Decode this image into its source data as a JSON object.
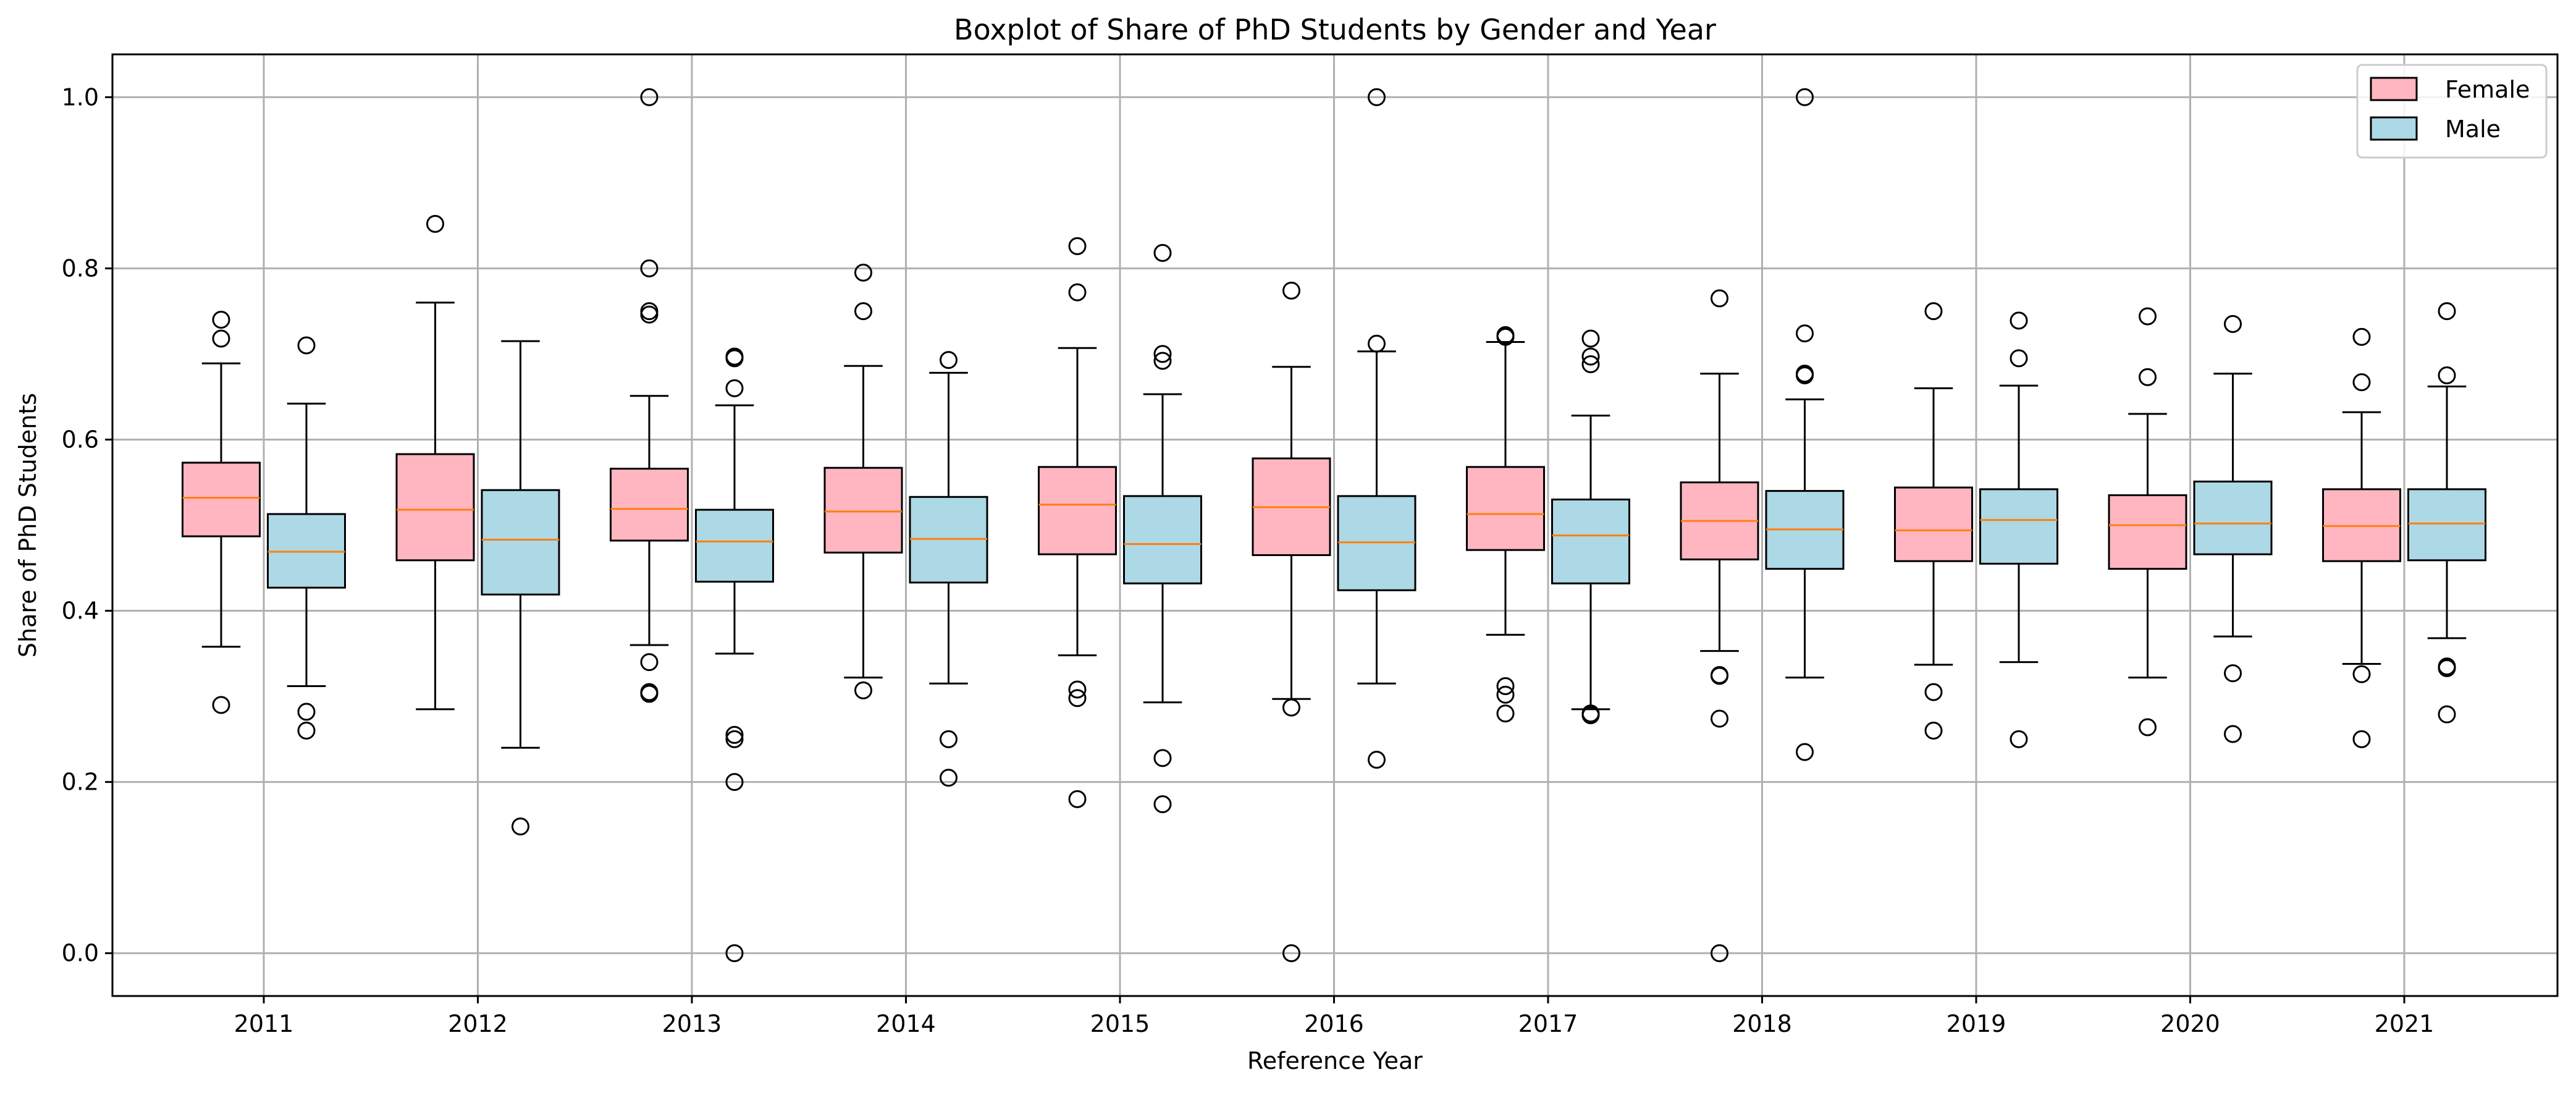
{
  "chart_data": {
    "type": "boxplot",
    "title": "Boxplot of Share of PhD Students by Gender and Year",
    "xlabel": "Reference Year",
    "ylabel": "Share of PhD Students",
    "ylim": [
      -0.05,
      1.05
    ],
    "yticks": [
      0.0,
      0.2,
      0.4,
      0.6,
      0.8,
      1.0
    ],
    "ytick_labels": [
      "0.0",
      "0.2",
      "0.4",
      "0.6",
      "0.8",
      "1.0"
    ],
    "grid": true,
    "legend_position": "top-right",
    "categories": [
      "2011",
      "2012",
      "2013",
      "2014",
      "2015",
      "2016",
      "2017",
      "2018",
      "2019",
      "2020",
      "2021"
    ],
    "colors": {
      "Female": "#ffb6c1",
      "Male": "#add8e6",
      "median": "#ff7f0e",
      "grid": "#b0b0b0"
    },
    "series": [
      {
        "name": "Female",
        "boxes": [
          {
            "whislo": 0.358,
            "q1": 0.487,
            "med": 0.532,
            "q3": 0.573,
            "whishi": 0.689,
            "fliers": [
              0.29,
              0.718,
              0.74
            ]
          },
          {
            "whislo": 0.285,
            "q1": 0.459,
            "med": 0.518,
            "q3": 0.583,
            "whishi": 0.76,
            "fliers": [
              0.852
            ]
          },
          {
            "whislo": 0.36,
            "q1": 0.482,
            "med": 0.519,
            "q3": 0.566,
            "whishi": 0.651,
            "fliers": [
              0.303,
              0.305,
              0.34,
              0.746,
              0.75,
              0.8,
              1.0
            ]
          },
          {
            "whislo": 0.322,
            "q1": 0.468,
            "med": 0.516,
            "q3": 0.567,
            "whishi": 0.686,
            "fliers": [
              0.307,
              0.75,
              0.795
            ]
          },
          {
            "whislo": 0.348,
            "q1": 0.466,
            "med": 0.524,
            "q3": 0.568,
            "whishi": 0.707,
            "fliers": [
              0.18,
              0.298,
              0.308,
              0.772,
              0.826
            ]
          },
          {
            "whislo": 0.297,
            "q1": 0.465,
            "med": 0.521,
            "q3": 0.578,
            "whishi": 0.685,
            "fliers": [
              0.0,
              0.287,
              0.774
            ]
          },
          {
            "whislo": 0.372,
            "q1": 0.471,
            "med": 0.513,
            "q3": 0.568,
            "whishi": 0.714,
            "fliers": [
              0.28,
              0.302,
              0.312,
              0.72,
              0.722
            ]
          },
          {
            "whislo": 0.353,
            "q1": 0.46,
            "med": 0.505,
            "q3": 0.55,
            "whishi": 0.677,
            "fliers": [
              0.0,
              0.274,
              0.324,
              0.325,
              0.765
            ]
          },
          {
            "whislo": 0.337,
            "q1": 0.458,
            "med": 0.494,
            "q3": 0.544,
            "whishi": 0.66,
            "fliers": [
              0.26,
              0.305,
              0.75
            ]
          },
          {
            "whislo": 0.322,
            "q1": 0.449,
            "med": 0.5,
            "q3": 0.535,
            "whishi": 0.63,
            "fliers": [
              0.264,
              0.673,
              0.744
            ]
          },
          {
            "whislo": 0.338,
            "q1": 0.458,
            "med": 0.499,
            "q3": 0.542,
            "whishi": 0.632,
            "fliers": [
              0.25,
              0.326,
              0.667,
              0.72
            ]
          }
        ]
      },
      {
        "name": "Male",
        "boxes": [
          {
            "whislo": 0.312,
            "q1": 0.427,
            "med": 0.469,
            "q3": 0.513,
            "whishi": 0.642,
            "fliers": [
              0.26,
              0.282,
              0.71
            ]
          },
          {
            "whislo": 0.24,
            "q1": 0.419,
            "med": 0.483,
            "q3": 0.541,
            "whishi": 0.715,
            "fliers": [
              0.148
            ]
          },
          {
            "whislo": 0.35,
            "q1": 0.434,
            "med": 0.481,
            "q3": 0.518,
            "whishi": 0.64,
            "fliers": [
              0.0,
              0.2,
              0.25,
              0.255,
              0.66,
              0.695,
              0.697
            ]
          },
          {
            "whislo": 0.315,
            "q1": 0.433,
            "med": 0.484,
            "q3": 0.533,
            "whishi": 0.678,
            "fliers": [
              0.205,
              0.25,
              0.693
            ]
          },
          {
            "whislo": 0.293,
            "q1": 0.432,
            "med": 0.478,
            "q3": 0.534,
            "whishi": 0.653,
            "fliers": [
              0.174,
              0.228,
              0.692,
              0.7,
              0.818
            ]
          },
          {
            "whislo": 0.315,
            "q1": 0.424,
            "med": 0.48,
            "q3": 0.534,
            "whishi": 0.703,
            "fliers": [
              0.226,
              0.712,
              1.0
            ]
          },
          {
            "whislo": 0.285,
            "q1": 0.432,
            "med": 0.488,
            "q3": 0.53,
            "whishi": 0.628,
            "fliers": [
              0.278,
              0.28,
              0.688,
              0.697,
              0.718
            ]
          },
          {
            "whislo": 0.322,
            "q1": 0.449,
            "med": 0.495,
            "q3": 0.54,
            "whishi": 0.647,
            "fliers": [
              0.235,
              0.675,
              0.677,
              0.724,
              1.0
            ]
          },
          {
            "whislo": 0.34,
            "q1": 0.455,
            "med": 0.506,
            "q3": 0.542,
            "whishi": 0.663,
            "fliers": [
              0.25,
              0.695,
              0.739
            ]
          },
          {
            "whislo": 0.37,
            "q1": 0.466,
            "med": 0.502,
            "q3": 0.551,
            "whishi": 0.677,
            "fliers": [
              0.256,
              0.327,
              0.735
            ]
          },
          {
            "whislo": 0.368,
            "q1": 0.459,
            "med": 0.502,
            "q3": 0.542,
            "whishi": 0.662,
            "fliers": [
              0.279,
              0.333,
              0.335,
              0.675,
              0.75
            ]
          }
        ]
      }
    ]
  }
}
